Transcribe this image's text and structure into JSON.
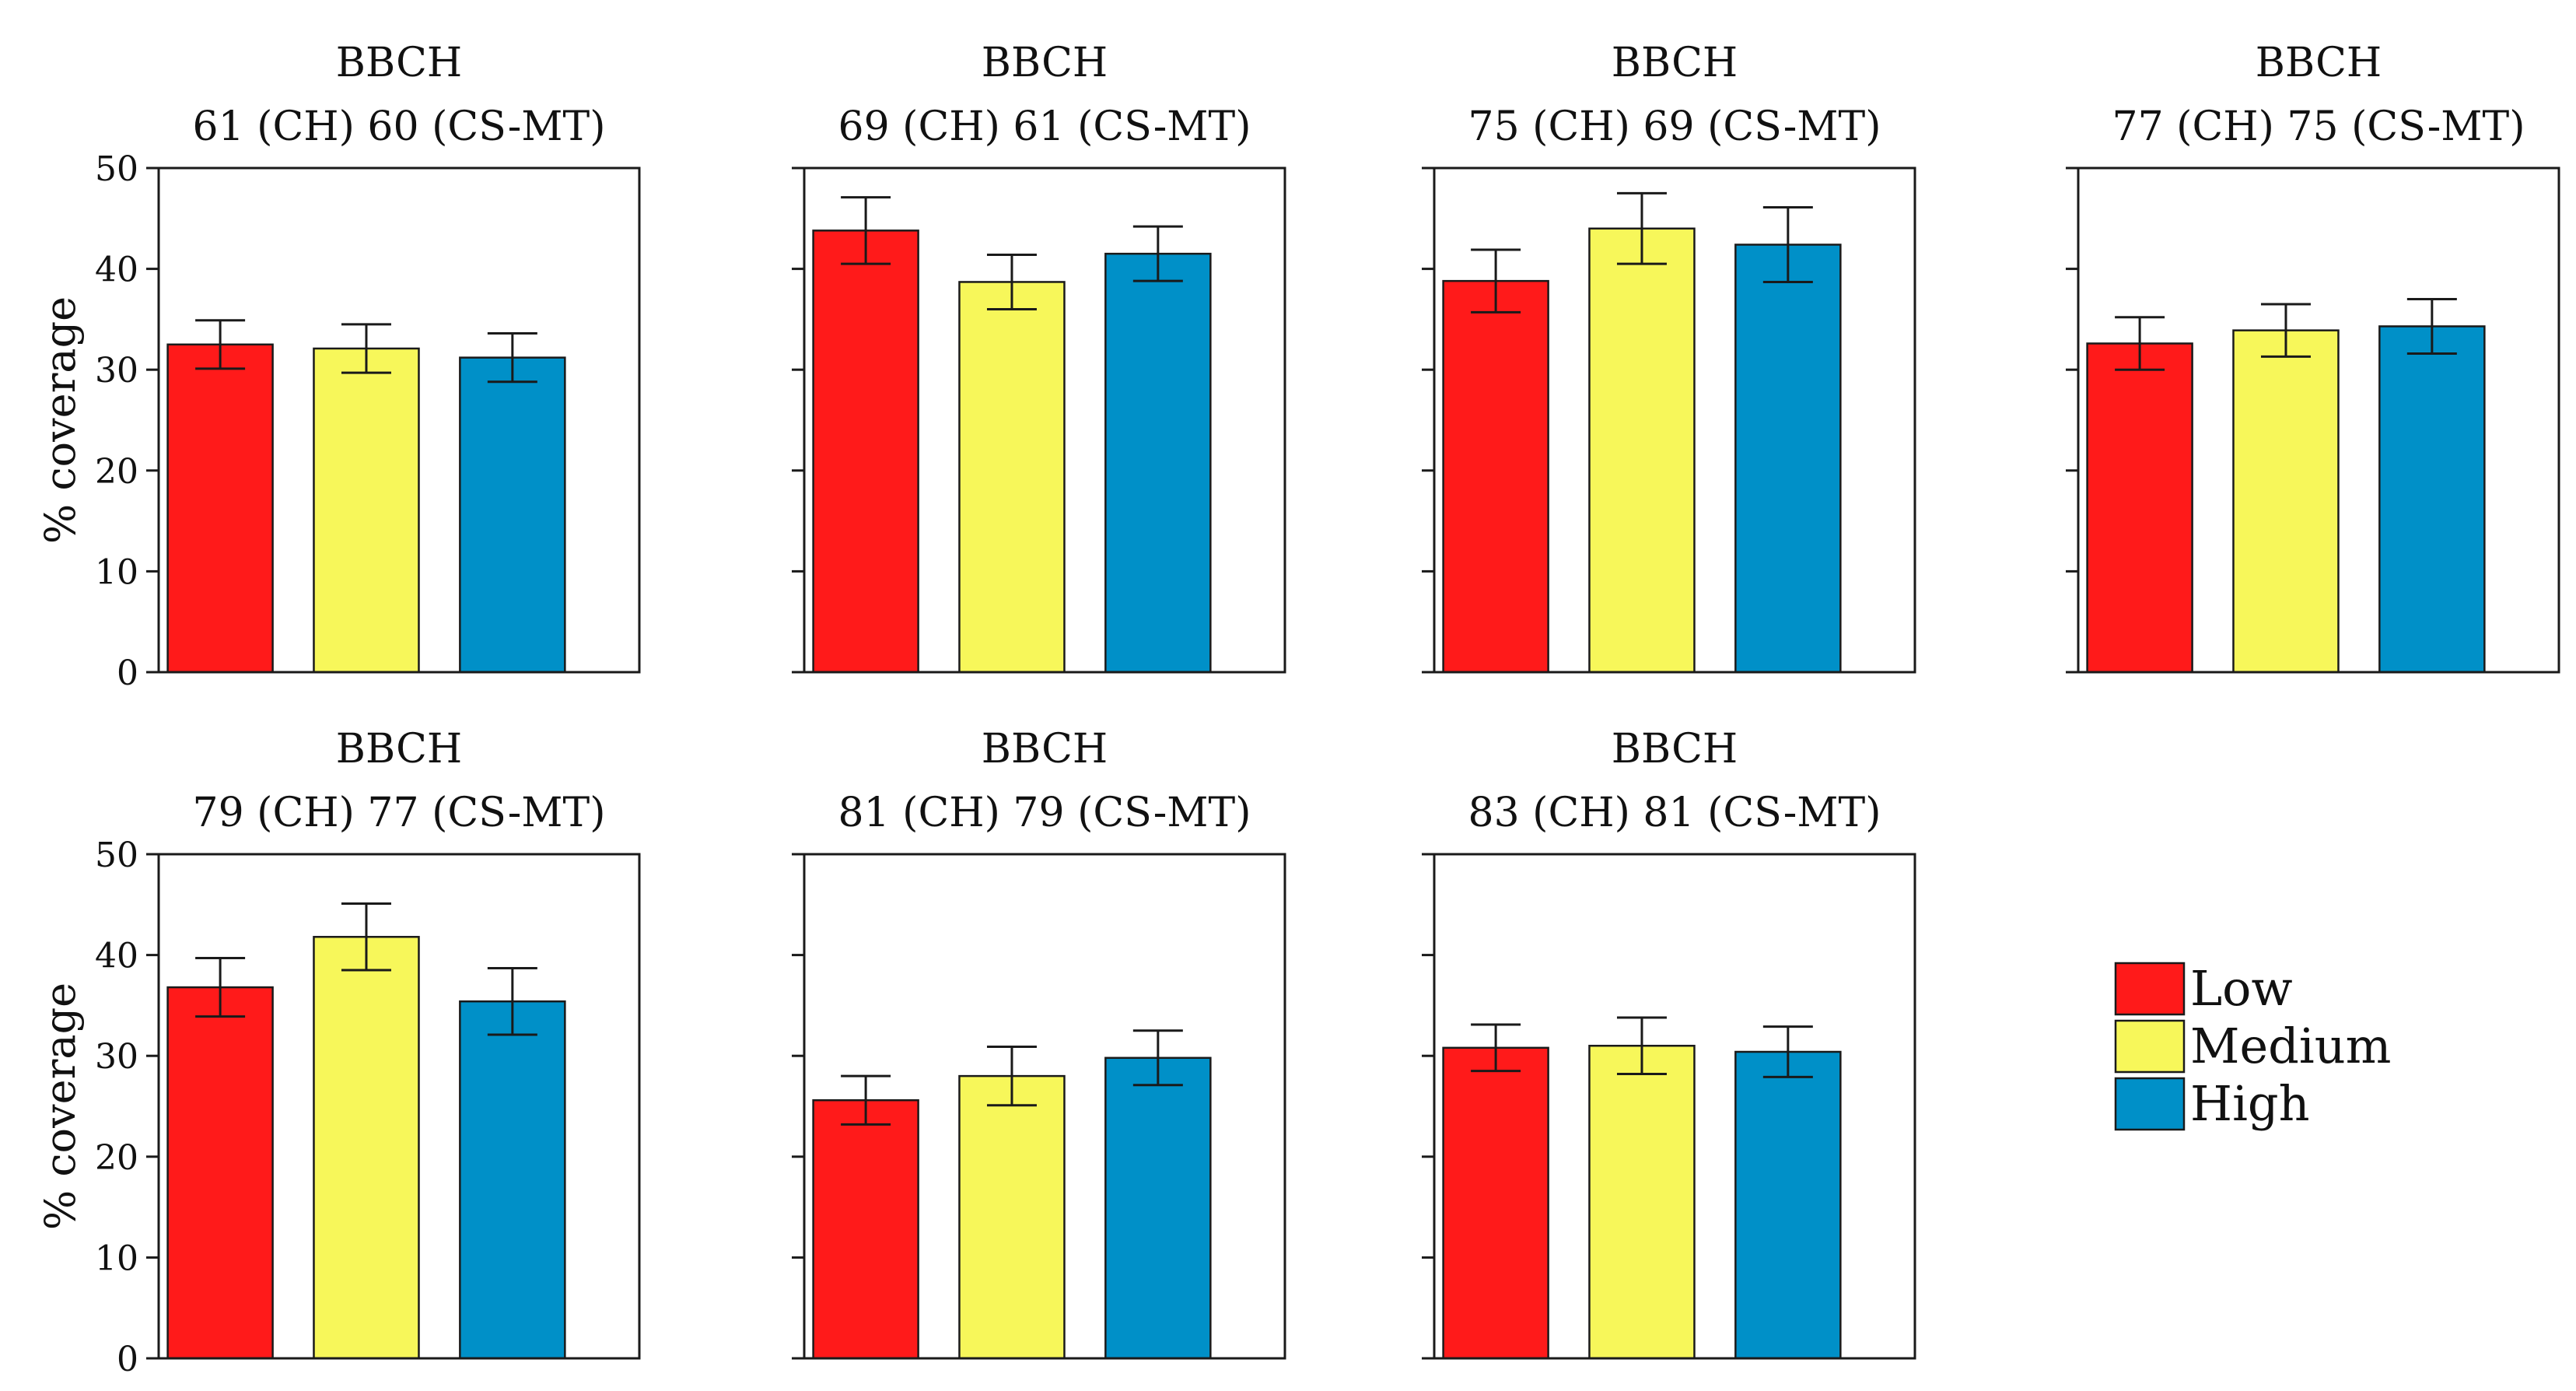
{
  "y_axis_label": "% coverage",
  "legend": {
    "position": "right",
    "items": [
      {
        "label": "Low",
        "color": "#ff1a1a"
      },
      {
        "label": "Medium",
        "color": "#f7f75a"
      },
      {
        "label": "High",
        "color": "#0090c8"
      }
    ]
  },
  "chart_data": [
    {
      "type": "bar",
      "title_line1": "BBCH",
      "title_line2": "61 (CH) 60 (CS-MT)",
      "categories": [
        "Low",
        "Medium",
        "High"
      ],
      "values": [
        32.5,
        32.1,
        31.2
      ],
      "errors": [
        2.4,
        2.4,
        2.4
      ],
      "ylim": [
        0,
        50
      ],
      "yticks": [
        0,
        10,
        20,
        30,
        40,
        50
      ],
      "show_tick_labels": true,
      "ylabel": "% coverage"
    },
    {
      "type": "bar",
      "title_line1": "BBCH",
      "title_line2": "69 (CH) 61 (CS-MT)",
      "categories": [
        "Low",
        "Medium",
        "High"
      ],
      "values": [
        43.8,
        38.7,
        41.5
      ],
      "errors": [
        3.3,
        2.7,
        2.7
      ],
      "ylim": [
        0,
        50
      ],
      "yticks": [
        0,
        10,
        20,
        30,
        40,
        50
      ],
      "show_tick_labels": false,
      "ylabel": ""
    },
    {
      "type": "bar",
      "title_line1": "BBCH",
      "title_line2": "75 (CH) 69 (CS-MT)",
      "categories": [
        "Low",
        "Medium",
        "High"
      ],
      "values": [
        38.8,
        44.0,
        42.4
      ],
      "errors": [
        3.1,
        3.5,
        3.7
      ],
      "ylim": [
        0,
        50
      ],
      "yticks": [
        0,
        10,
        20,
        30,
        40,
        50
      ],
      "show_tick_labels": false,
      "ylabel": ""
    },
    {
      "type": "bar",
      "title_line1": "BBCH",
      "title_line2": "77 (CH) 75 (CS-MT)",
      "categories": [
        "Low",
        "Medium",
        "High"
      ],
      "values": [
        32.6,
        33.9,
        34.3
      ],
      "errors": [
        2.6,
        2.6,
        2.7
      ],
      "ylim": [
        0,
        50
      ],
      "yticks": [
        0,
        10,
        20,
        30,
        40,
        50
      ],
      "show_tick_labels": false,
      "ylabel": ""
    },
    {
      "type": "bar",
      "title_line1": "BBCH",
      "title_line2": "79 (CH) 77 (CS-MT)",
      "categories": [
        "Low",
        "Medium",
        "High"
      ],
      "values": [
        36.8,
        41.8,
        35.4
      ],
      "errors": [
        2.9,
        3.3,
        3.3
      ],
      "ylim": [
        0,
        50
      ],
      "yticks": [
        0,
        10,
        20,
        30,
        40,
        50
      ],
      "show_tick_labels": true,
      "ylabel": "% coverage"
    },
    {
      "type": "bar",
      "title_line1": "BBCH",
      "title_line2": "81 (CH) 79 (CS-MT)",
      "categories": [
        "Low",
        "Medium",
        "High"
      ],
      "values": [
        25.6,
        28.0,
        29.8
      ],
      "errors": [
        2.4,
        2.9,
        2.7
      ],
      "ylim": [
        0,
        50
      ],
      "yticks": [
        0,
        10,
        20,
        30,
        40,
        50
      ],
      "show_tick_labels": false,
      "ylabel": ""
    },
    {
      "type": "bar",
      "title_line1": "BBCH",
      "title_line2": "83 (CH) 81 (CS-MT)",
      "categories": [
        "Low",
        "Medium",
        "High"
      ],
      "values": [
        30.8,
        31.0,
        30.4
      ],
      "errors": [
        2.3,
        2.8,
        2.5
      ],
      "ylim": [
        0,
        50
      ],
      "yticks": [
        0,
        10,
        20,
        30,
        40,
        50
      ],
      "show_tick_labels": false,
      "ylabel": ""
    }
  ]
}
